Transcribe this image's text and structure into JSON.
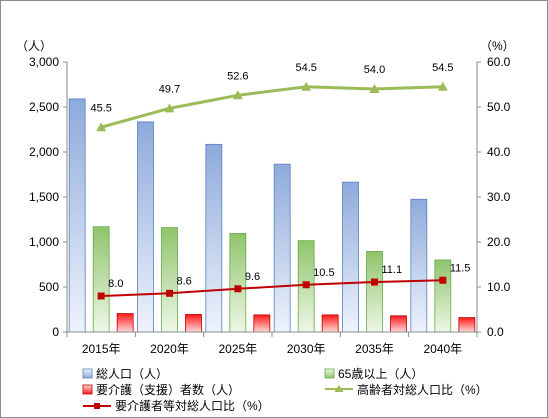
{
  "chart_data": {
    "type": "bar",
    "categories": [
      "2015年",
      "2020年",
      "2025年",
      "2030年",
      "2035年",
      "2040年"
    ],
    "y_left": {
      "unit_label": "（人）",
      "ylim": [
        0,
        3000
      ],
      "ticks": [
        "0",
        "500",
        "1,000",
        "1,500",
        "2,000",
        "2,500",
        "3,000"
      ]
    },
    "y_right": {
      "unit_label": "（%）",
      "ylim": [
        0,
        60
      ],
      "ticks": [
        "0.0",
        "10.0",
        "20.0",
        "30.0",
        "40.0",
        "50.0",
        "60.0"
      ]
    },
    "series": [
      {
        "name": "総人口（人）",
        "kind": "bar",
        "axis": "left",
        "color": "#8eaadb",
        "values": [
          2590,
          2335,
          2085,
          1865,
          1665,
          1475
        ]
      },
      {
        "name": "65歳以上（人）",
        "kind": "bar",
        "axis": "left",
        "color": "#a9d18e",
        "values": [
          1170,
          1160,
          1095,
          1015,
          895,
          800
        ]
      },
      {
        "name": "要介護（支援）者数（人）",
        "kind": "bar",
        "axis": "left",
        "color": "#ff0000",
        "values": [
          205,
          195,
          190,
          190,
          180,
          160
        ]
      },
      {
        "name": "高齢者対総人口比（%）",
        "kind": "line",
        "axis": "right",
        "color": "#9bbb59",
        "marker": "triangle",
        "values": [
          45.5,
          49.7,
          52.6,
          54.5,
          54.0,
          54.5
        ],
        "labels": [
          "45.5",
          "49.7",
          "52.6",
          "54.5",
          "54.0",
          "54.5"
        ]
      },
      {
        "name": "要介護者等対総人口比（%）",
        "kind": "line",
        "axis": "right",
        "color": "#c00000",
        "marker": "square",
        "values": [
          8.0,
          8.6,
          9.6,
          10.5,
          11.1,
          11.5
        ],
        "labels": [
          "8.0",
          "8.6",
          "9.6",
          "10.5",
          "11.1",
          "11.5"
        ]
      }
    ],
    "grid": false,
    "legend_position": "bottom"
  }
}
